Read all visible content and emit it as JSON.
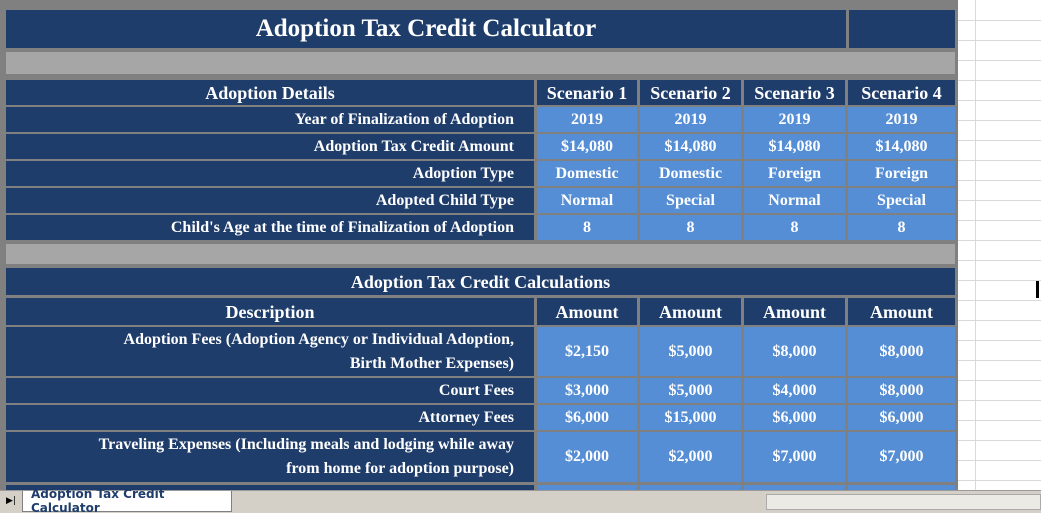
{
  "title": "Adoption Tax Credit Calculator",
  "details": {
    "header": [
      "Adoption Details",
      "Scenario 1",
      "Scenario 2",
      "Scenario 3",
      "Scenario 4"
    ],
    "rows": [
      {
        "label": "Year of Finalization of Adoption",
        "values": [
          "2019",
          "2019",
          "2019",
          "2019"
        ]
      },
      {
        "label": "Adoption Tax Credit Amount",
        "values": [
          "$14,080",
          "$14,080",
          "$14,080",
          "$14,080"
        ]
      },
      {
        "label": "Adoption Type",
        "values": [
          "Domestic",
          "Domestic",
          "Foreign",
          "Foreign"
        ]
      },
      {
        "label": "Adopted Child Type",
        "values": [
          "Normal",
          "Special",
          "Normal",
          "Special"
        ]
      },
      {
        "label": "Child's Age at the time of Finalization of Adoption",
        "values": [
          "8",
          "8",
          "8",
          "8"
        ]
      }
    ]
  },
  "calculations": {
    "title": "Adoption Tax Credit Calculations",
    "header": [
      "Description",
      "Amount",
      "Amount",
      "Amount",
      "Amount"
    ],
    "rows": [
      {
        "label": [
          "Adoption Fees (Adoption Agency or Individual Adoption,",
          "Birth Mother Expenses)"
        ],
        "values": [
          "$2,150",
          "$5,000",
          "$8,000",
          "$8,000"
        ]
      },
      {
        "label": [
          "Court Fees"
        ],
        "values": [
          "$3,000",
          "$5,000",
          "$4,000",
          "$8,000"
        ]
      },
      {
        "label": [
          "Attorney Fees"
        ],
        "values": [
          "$6,000",
          "$15,000",
          "$6,000",
          "$6,000"
        ]
      },
      {
        "label": [
          "Traveling Expenses (Including meals and lodging while away",
          "from home for adoption purpose)"
        ],
        "values": [
          "$2,000",
          "$2,000",
          "$7,000",
          "$7,000"
        ]
      }
    ]
  },
  "sheet_tab": "Adoption Tax Credit Calculator"
}
